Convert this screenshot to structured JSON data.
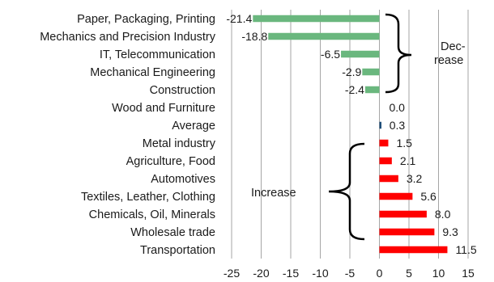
{
  "chart_data": {
    "type": "bar",
    "orientation": "horizontal",
    "categories": [
      "Paper, Packaging, Printing",
      "Mechanics and Precision Industry",
      "IT, Telecommunication",
      "Mechanical Engineering",
      "Construction",
      "Wood and Furniture",
      "Average",
      "Metal industry",
      "Agriculture, Food",
      "Automotives",
      "Textiles, Leather, Clothing",
      "Chemicals, Oil, Minerals",
      "Wholesale trade",
      "Transportation"
    ],
    "values": [
      -21.4,
      -18.8,
      -6.5,
      -2.9,
      -2.4,
      0.0,
      0.3,
      1.5,
      2.1,
      3.2,
      5.6,
      8.0,
      9.3,
      11.5
    ],
    "data_labels": [
      "-21.4",
      "-18.8",
      "-6.5",
      "-2.9",
      "-2.4",
      "0.0",
      "0.3",
      "1.5",
      "2.1",
      "3.2",
      "5.6",
      "8.0",
      "9.3",
      "11.5"
    ],
    "xlim": [
      -25,
      15
    ],
    "x_ticks": [
      "-25",
      "-20",
      "-15",
      "-10",
      "-5",
      "0",
      "5",
      "10",
      "15"
    ],
    "grid": "vertical",
    "colors": {
      "negative": "#6ab77e",
      "average": "#1f4e79",
      "positive": "#ff0000",
      "grid": "#a6a6a6"
    },
    "annotations": {
      "decrease": [
        "Dec-",
        "rease"
      ],
      "increase": "Increase"
    }
  }
}
